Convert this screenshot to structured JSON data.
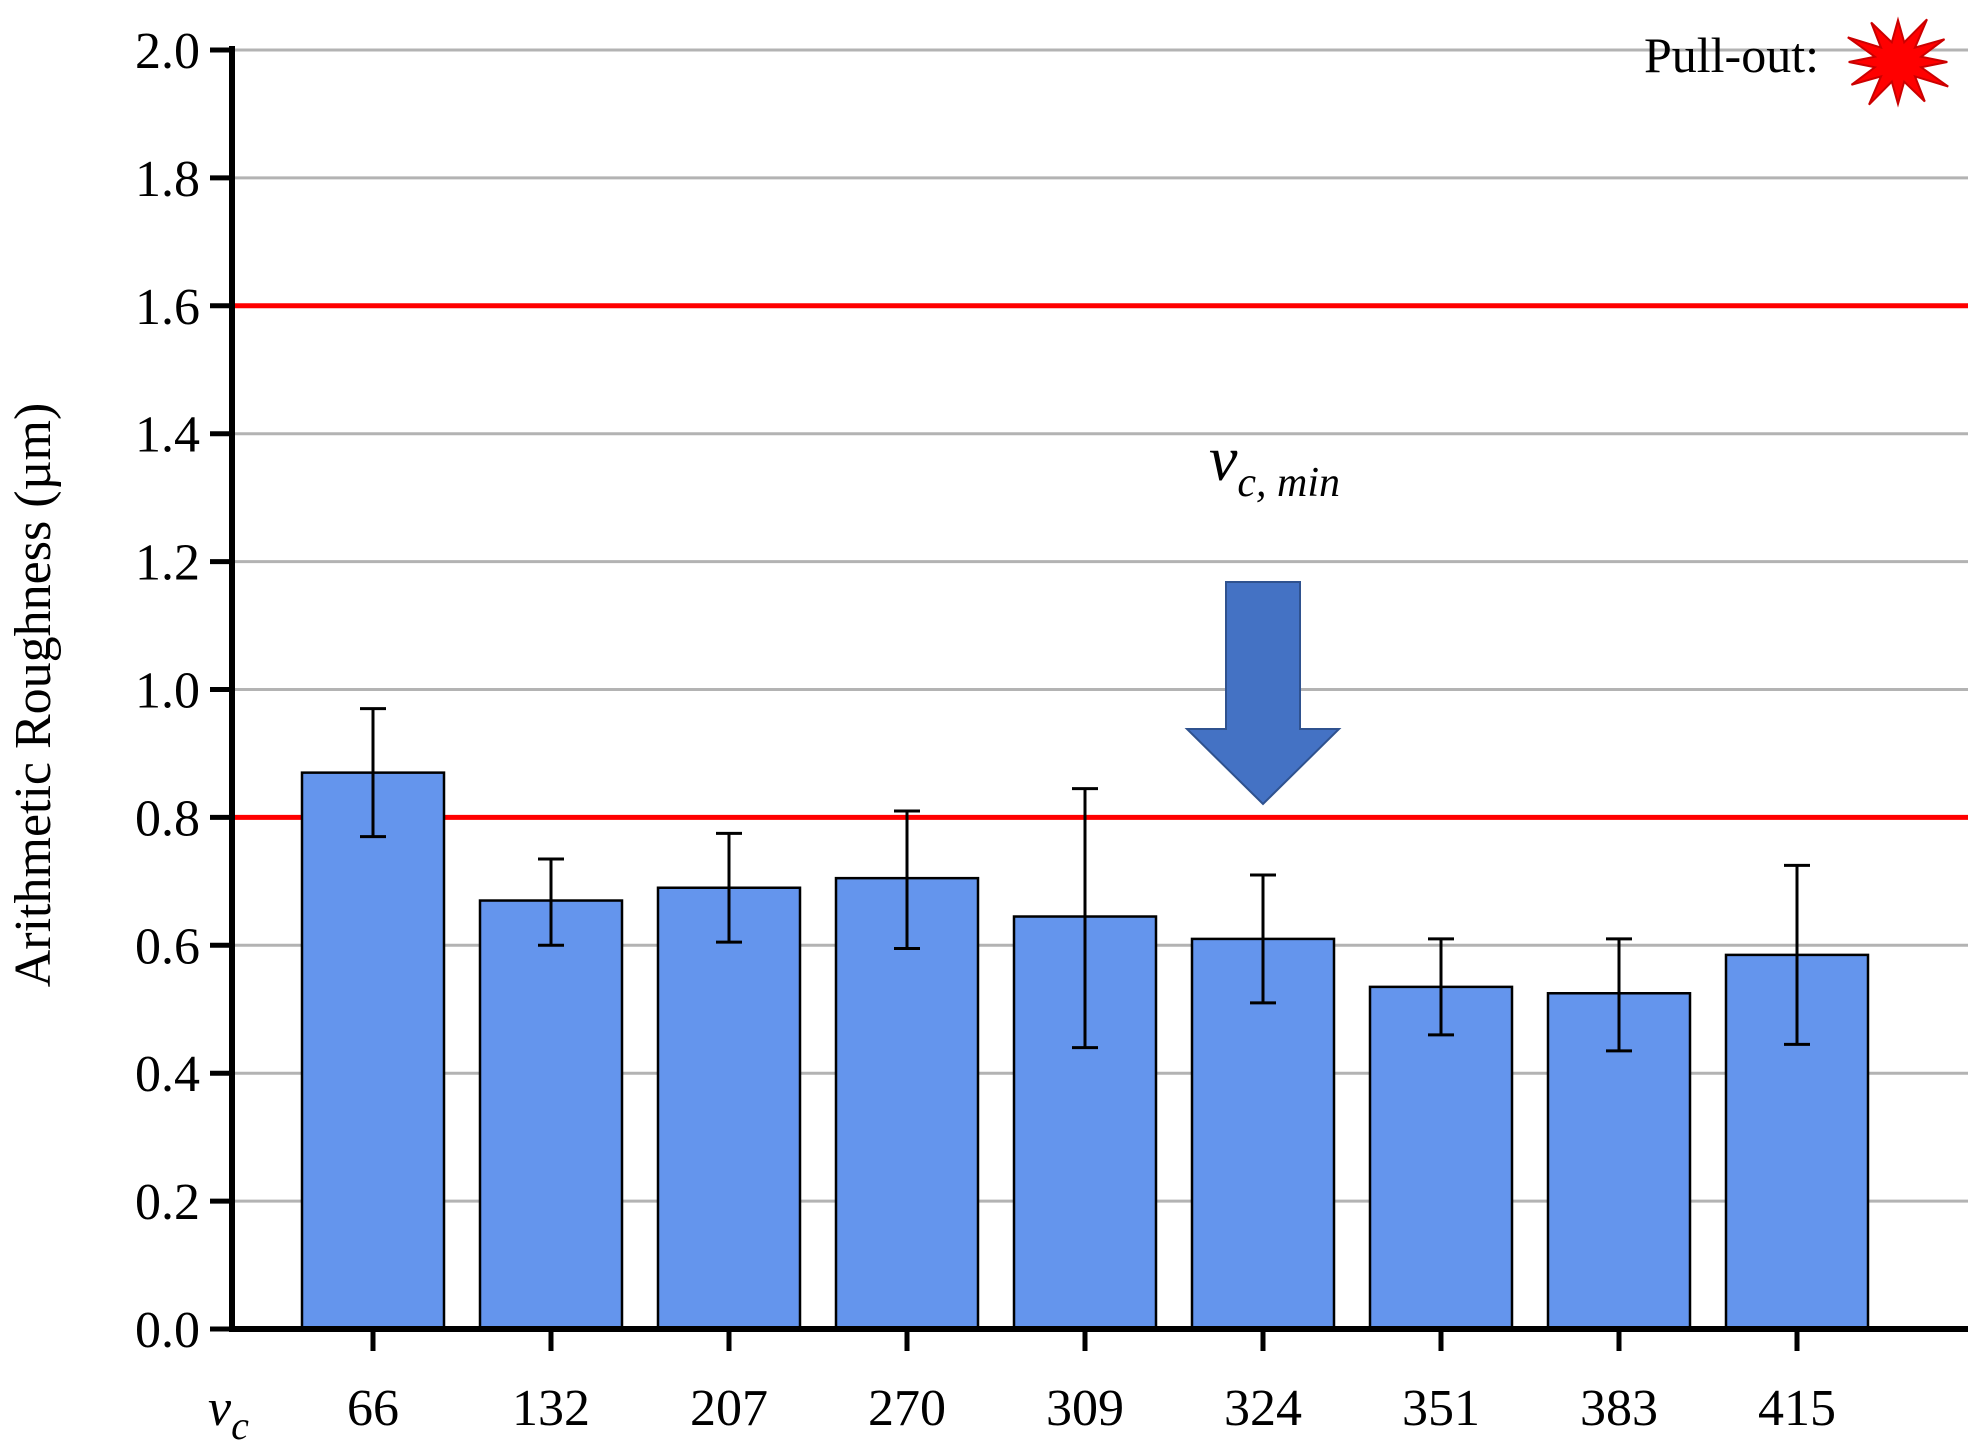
{
  "chart_data": {
    "type": "bar",
    "ylabel": "Arithmetic Roughness (µm)",
    "x_axis_prefix": {
      "symbol": "v",
      "subscript": "c"
    },
    "categories": [
      "66",
      "132",
      "207",
      "270",
      "309",
      "324",
      "351",
      "383",
      "415"
    ],
    "values": [
      0.87,
      0.67,
      0.69,
      0.705,
      0.645,
      0.61,
      0.535,
      0.525,
      0.585
    ],
    "error_upper": [
      0.97,
      0.735,
      0.775,
      0.81,
      0.845,
      0.71,
      0.61,
      0.61,
      0.725
    ],
    "error_lower": [
      0.77,
      0.6,
      0.605,
      0.595,
      0.44,
      0.51,
      0.46,
      0.435,
      0.445
    ],
    "ylim": [
      0,
      2.0
    ],
    "yticks": [
      "0.0",
      "0.2",
      "0.4",
      "0.6",
      "0.8",
      "1.0",
      "1.2",
      "1.4",
      "1.6",
      "1.8",
      "2.0"
    ],
    "grid": true,
    "bar_color": "#6495ed",
    "reference_lines": [
      {
        "y": 1.6,
        "color": "#ff0000"
      },
      {
        "y": 0.8,
        "color": "#ff0000"
      }
    ],
    "annotations": [
      {
        "type": "arrow",
        "points_to_category": "324",
        "color": "#4472c4",
        "label": {
          "symbol": "v",
          "subscript": "c, min"
        }
      }
    ],
    "legend": {
      "label": "Pull-out:",
      "icon": "red-starburst-icon",
      "color": "#ff0000",
      "placement": "top-right"
    }
  }
}
